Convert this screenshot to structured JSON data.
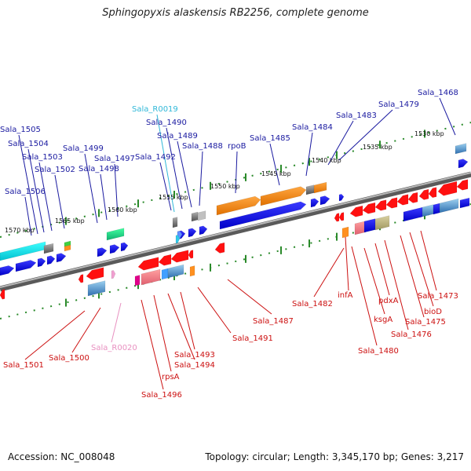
{
  "title": "Sphingopyxis alaskensis RB2256, complete genome",
  "footer": {
    "accession": "Accession: NC_008048",
    "summary": "Topology: circular; Length: 3,345,170 bp; Genes: 3,217"
  },
  "colors": {
    "label_top": "#1a1aa0",
    "label_bottom": "#cc1010",
    "label_rna_top": "#30b8d8",
    "label_rna_bottom": "#e890c0",
    "backbone": "#8a8a8a",
    "tick": "#2a8a2a"
  },
  "scale_labels": [
    {
      "text": "1570 kbp",
      "pos": 1570
    },
    {
      "text": "1565 kbp",
      "pos": 1565
    },
    {
      "text": "1560 kbp",
      "pos": 1560
    },
    {
      "text": "1555 kbp",
      "pos": 1555
    },
    {
      "text": "1550 kbp",
      "pos": 1550
    },
    {
      "text": "1545 kbp",
      "pos": 1545
    },
    {
      "text": "1540 kbp",
      "pos": 1540
    },
    {
      "text": "1535 kbp",
      "pos": 1535
    },
    {
      "text": "1530 kbp",
      "pos": 1530
    }
  ],
  "top_labels": [
    {
      "text": "Sala_1505",
      "color": "label_top"
    },
    {
      "text": "Sala_1504",
      "color": "label_top"
    },
    {
      "text": "Sala_1503",
      "color": "label_top"
    },
    {
      "text": "Sala_1502",
      "color": "label_top"
    },
    {
      "text": "Sala_1506",
      "color": "label_top"
    },
    {
      "text": "Sala_1499",
      "color": "label_top"
    },
    {
      "text": "Sala_1498",
      "color": "label_top"
    },
    {
      "text": "Sala_1497",
      "color": "label_top"
    },
    {
      "text": "Sala_R0019",
      "color": "label_rna_top"
    },
    {
      "text": "Sala_1490",
      "color": "label_top"
    },
    {
      "text": "Sala_1489",
      "color": "label_top"
    },
    {
      "text": "Sala_1488",
      "color": "label_top"
    },
    {
      "text": "Sala_1492",
      "color": "label_top"
    },
    {
      "text": "rpoB",
      "color": "label_top"
    },
    {
      "text": "Sala_1485",
      "color": "label_top"
    },
    {
      "text": "Sala_1484",
      "color": "label_top"
    },
    {
      "text": "Sala_1483",
      "color": "label_top"
    },
    {
      "text": "Sala_1479",
      "color": "label_top"
    },
    {
      "text": "Sala_1468",
      "color": "label_top"
    }
  ],
  "bottom_labels": [
    {
      "text": "Sala_1501",
      "color": "label_bottom"
    },
    {
      "text": "Sala_1500",
      "color": "label_bottom"
    },
    {
      "text": "Sala_R0020",
      "color": "label_rna_bottom"
    },
    {
      "text": "Sala_1496",
      "color": "label_bottom"
    },
    {
      "text": "rpsA",
      "color": "label_bottom"
    },
    {
      "text": "Sala_1494",
      "color": "label_bottom"
    },
    {
      "text": "Sala_1493",
      "color": "label_bottom"
    },
    {
      "text": "Sala_1491",
      "color": "label_bottom"
    },
    {
      "text": "Sala_1487",
      "color": "label_bottom"
    },
    {
      "text": "Sala_1482",
      "color": "label_bottom"
    },
    {
      "text": "infA",
      "color": "label_bottom"
    },
    {
      "text": "ksgA",
      "color": "label_bottom"
    },
    {
      "text": "Sala_1480",
      "color": "label_bottom"
    },
    {
      "text": "pdxA",
      "color": "label_bottom"
    },
    {
      "text": "Sala_1476",
      "color": "label_bottom"
    },
    {
      "text": "Sala_1475",
      "color": "label_bottom"
    },
    {
      "text": "bioD",
      "color": "label_bottom"
    },
    {
      "text": "Sala_1473",
      "color": "label_bottom"
    }
  ]
}
